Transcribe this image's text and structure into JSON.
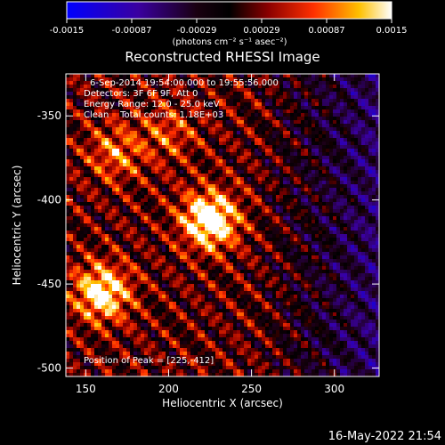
{
  "chart_data": {
    "type": "heatmap",
    "title": "Reconstructed RHESSI Image",
    "xlabel": "Heliocentric X (arcsec)",
    "ylabel": "Heliocentric Y (arcsec)",
    "xlim": [
      138,
      327
    ],
    "ylim": [
      -505,
      -325
    ],
    "xticks": [
      150,
      200,
      250,
      300
    ],
    "yticks": [
      -350,
      -400,
      -450,
      -500
    ],
    "colorbar": {
      "ticks": [
        "-0.0015",
        "-0.00087",
        "-0.00029",
        "0.00029",
        "0.00087",
        "0.0015"
      ],
      "range": [
        -0.0015,
        0.0015
      ],
      "unit_label": "(photons cm⁻² s⁻¹ asec⁻²)"
    },
    "annotations": [
      "6-Sep-2014 19:54:00.000 to 19:55:56.000",
      "Detectors: 3F 6F 9F, Att 0",
      "Energy Range: 12.0 - 25.0 keV",
      "Clean    Total counts: 1.18E+03"
    ],
    "peak_label": "Position of Peak = [225,-412]",
    "peak": {
      "x": 225,
      "y": -412
    },
    "sources": [
      {
        "x": 225,
        "y": -412,
        "amplitude": 1.0
      },
      {
        "x": 160,
        "y": -455,
        "amplitude": 0.85
      },
      {
        "x": 168,
        "y": -372,
        "amplitude": 0.45
      },
      {
        "x": 200,
        "y": -360,
        "amplitude": 0.35
      }
    ]
  },
  "footer": {
    "timestamp": "16-May-2022 21:54"
  }
}
